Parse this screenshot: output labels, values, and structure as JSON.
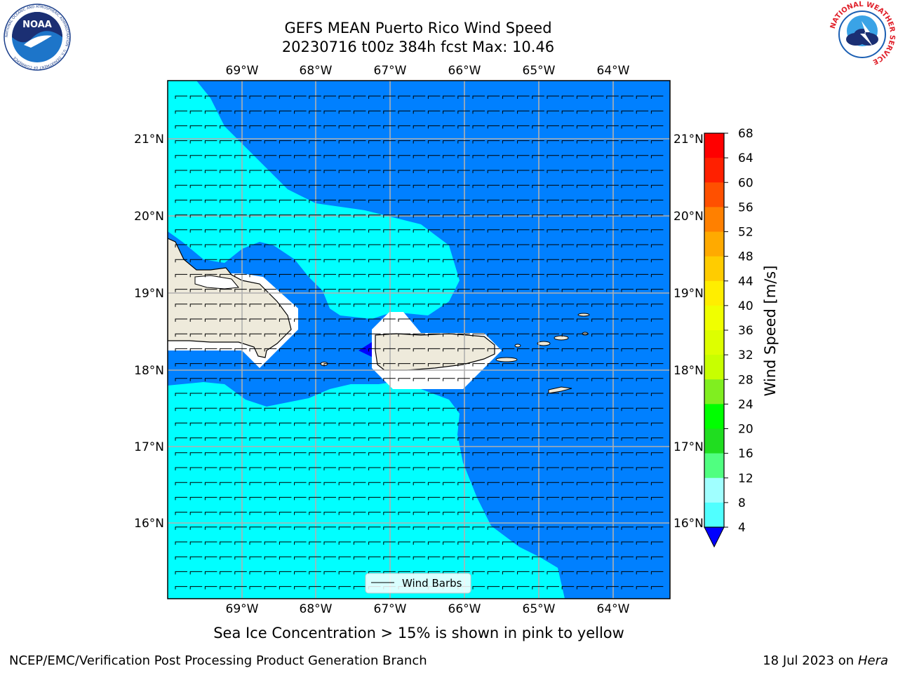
{
  "header": {
    "title_line1": "GEFS MEAN Puerto Rico Wind Speed",
    "title_line2": "20230716 t00z 384h fcst   Max: 10.46"
  },
  "logos": {
    "left": "NOAA",
    "left_ring": "NATIONAL OCEANIC AND ATMOSPHERIC ADMINISTRATION · U.S. DEPARTMENT OF COMMERCE",
    "right_ring": "NATIONAL WEATHER SERVICE"
  },
  "map": {
    "lon_labels": [
      "69°W",
      "68°W",
      "67°W",
      "66°W",
      "65°W",
      "64°W"
    ],
    "lat_labels": [
      "21°N",
      "20°N",
      "19°N",
      "18°N",
      "17°N",
      "16°N"
    ],
    "legend_label": "Wind Barbs",
    "colors": {
      "land": "#eeeadb",
      "ocean_low": "#0080ff",
      "ocean_mid": "#00ffff",
      "ocean_light": "#80ffff",
      "ocean_min": "#0000ff",
      "coast": "#000000"
    }
  },
  "colorbar": {
    "label": "Wind Speed [m/s]",
    "ticks": [
      "68",
      "64",
      "60",
      "56",
      "52",
      "48",
      "44",
      "40",
      "36",
      "32",
      "28",
      "24",
      "20",
      "16",
      "12",
      "8",
      "4"
    ],
    "colors_top_to_bottom": [
      "#ff0000",
      "#ff2000",
      "#ff5000",
      "#ff8000",
      "#ffaa00",
      "#ffcc00",
      "#ffee00",
      "#f0ff00",
      "#ddff00",
      "#c8ff00",
      "#80ee20",
      "#00ff00",
      "#20dd20",
      "#50ff80",
      "#a0ffff",
      "#50ffff",
      "#00ffff",
      "#0080ff"
    ],
    "extend_color": "#0000ff"
  },
  "note": "Sea Ice Concentration > 15% is shown in pink to yellow",
  "footer": {
    "left": "NCEP/EMC/Verification Post Processing Product Generation Branch",
    "right_prefix": "18 Jul 2023 on ",
    "right_italic": "Hera"
  }
}
